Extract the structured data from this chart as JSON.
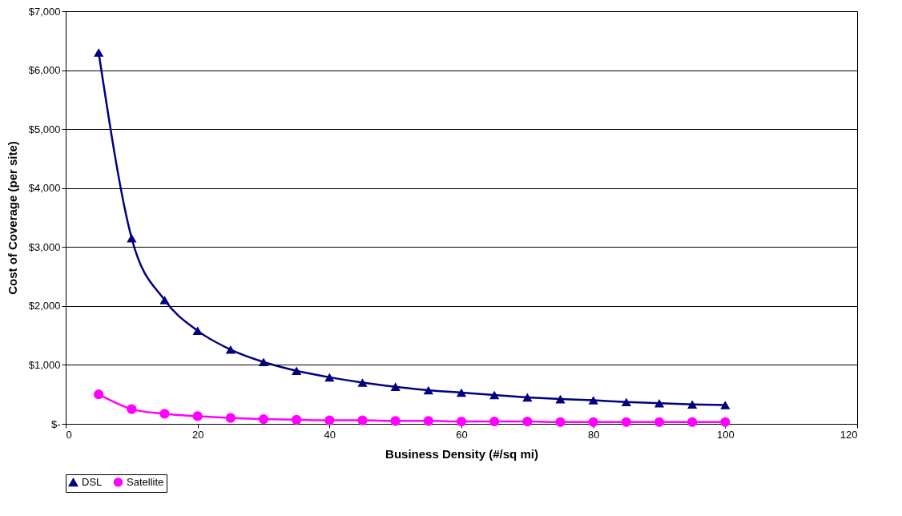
{
  "chart_data": {
    "type": "line",
    "xlabel": "Business Density (#/sq mi)",
    "ylabel": "Cost of Coverage (per site)",
    "x": [
      5,
      10,
      15,
      20,
      25,
      30,
      35,
      40,
      45,
      50,
      55,
      60,
      65,
      70,
      75,
      80,
      85,
      90,
      95,
      100
    ],
    "series": [
      {
        "name": "DSL",
        "color": "#000080",
        "marker": "triangle",
        "values": [
          6300,
          3150,
          2100,
          1580,
          1260,
          1050,
          900,
          790,
          700,
          630,
          570,
          530,
          490,
          450,
          420,
          400,
          370,
          350,
          330,
          320
        ]
      },
      {
        "name": "Satellite",
        "color": "#ff00ff",
        "marker": "circle",
        "values": [
          500,
          250,
          170,
          130,
          100,
          80,
          70,
          60,
          60,
          50,
          50,
          40,
          40,
          40,
          30,
          30,
          30,
          30,
          30,
          30
        ]
      }
    ],
    "xlim": [
      0,
      120
    ],
    "xticks": [
      0,
      20,
      40,
      60,
      80,
      100,
      120
    ],
    "ylim": [
      0,
      7000
    ],
    "yticks": [
      {
        "value": 0,
        "label": "$-"
      },
      {
        "value": 1000,
        "label": "$1,000"
      },
      {
        "value": 2000,
        "label": "$2,000"
      },
      {
        "value": 3000,
        "label": "$3,000"
      },
      {
        "value": 4000,
        "label": "$4,000"
      },
      {
        "value": 5000,
        "label": "$5,000"
      },
      {
        "value": 6000,
        "label": "$6,000"
      },
      {
        "value": 7000,
        "label": "$7,000"
      }
    ],
    "grid": "y",
    "legend": "bottom",
    "line_style": "solid"
  }
}
